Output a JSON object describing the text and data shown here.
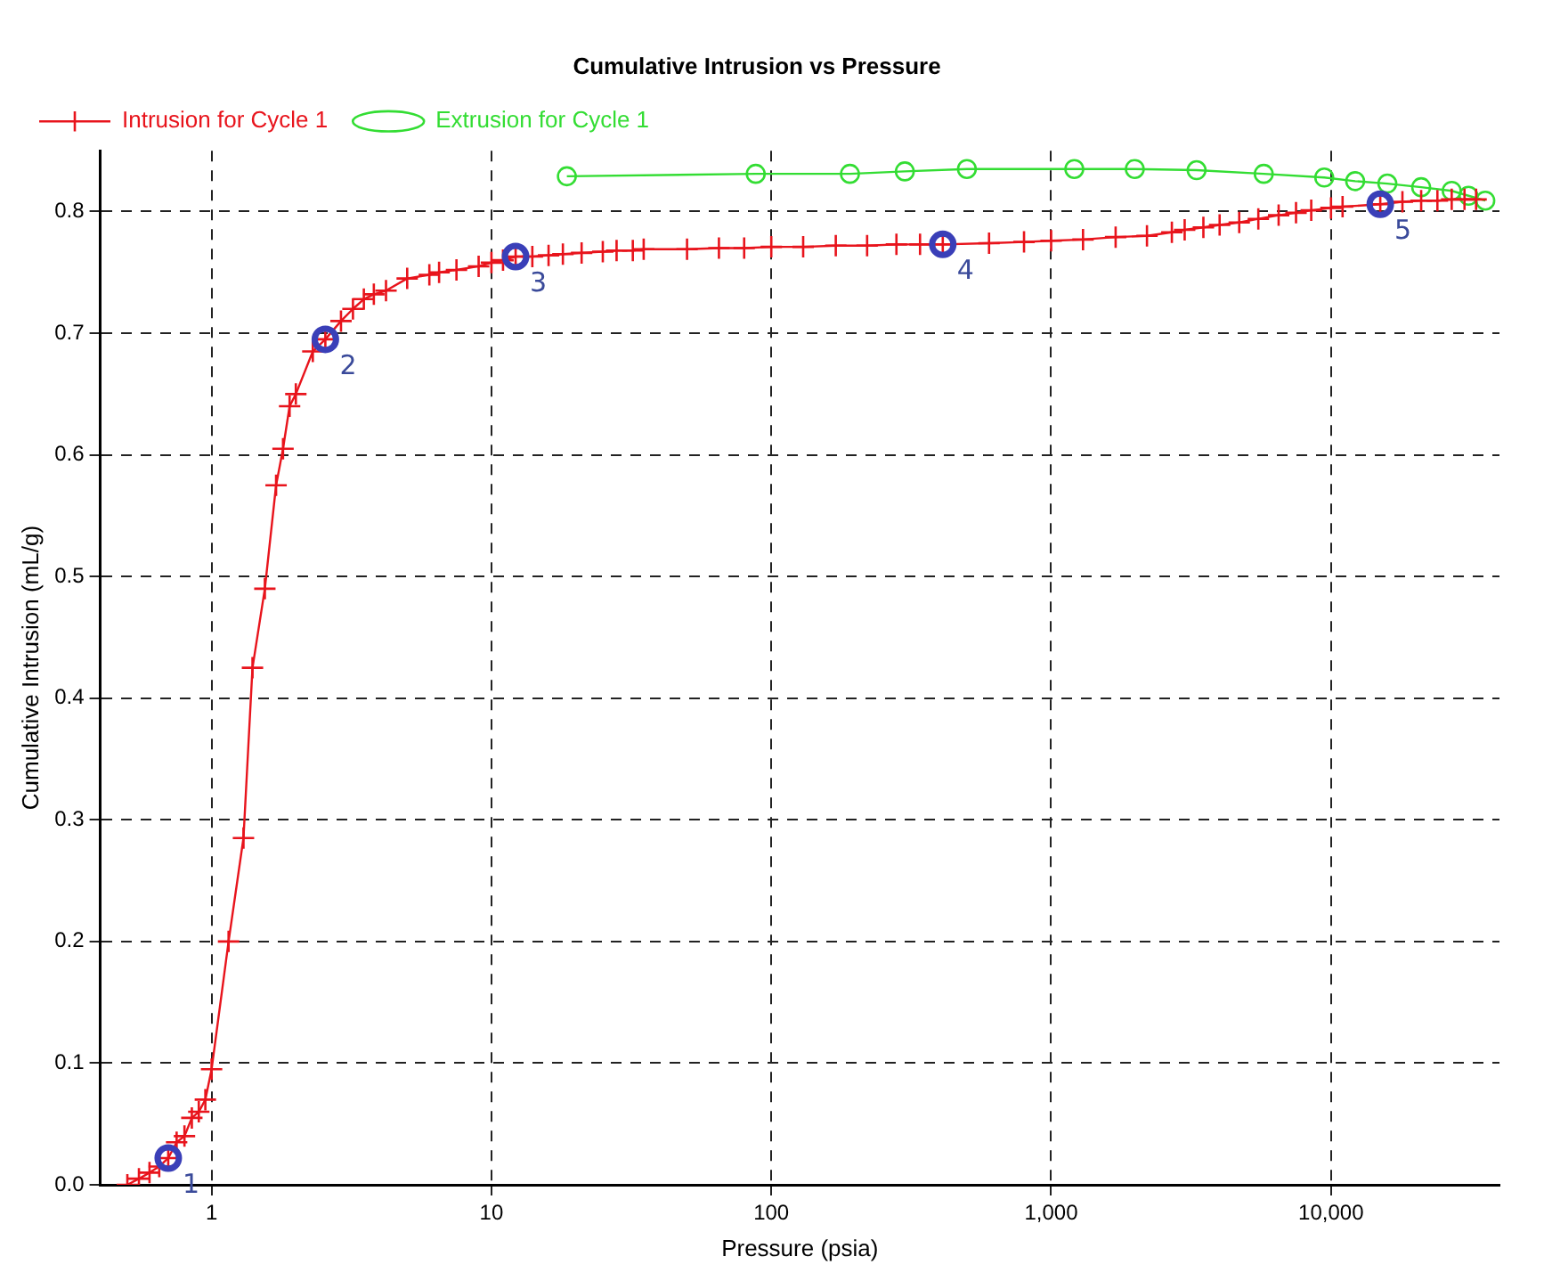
{
  "chart_data": {
    "type": "line",
    "title": "Cumulative Intrusion vs Pressure",
    "xlabel": "Pressure (psia)",
    "ylabel": "Cumulative Intrusion (mL/g)",
    "log": "x",
    "xlim": [
      0.4,
      40000
    ],
    "xticks": [
      1,
      10,
      100,
      {
        "value": 1000,
        "label": "1,000"
      },
      {
        "value": 10000,
        "label": "10,000"
      }
    ],
    "ylim": [
      0,
      0.85
    ],
    "yticks": [
      {
        "value": 0,
        "label": "0.0"
      },
      0.1,
      0.2,
      0.3,
      0.4,
      0.5,
      0.6,
      0.7,
      0.8
    ],
    "grid": true,
    "legend": "top left",
    "line_style": "solid",
    "series": [
      {
        "name": "Intrusion for Cycle 1",
        "color": "#e8141c",
        "marker": "cross",
        "x": [
          0.5,
          0.55,
          0.6,
          0.65,
          0.7,
          0.75,
          0.8,
          0.85,
          0.9,
          0.95,
          1.0,
          1.15,
          1.3,
          1.4,
          1.55,
          1.7,
          1.8,
          1.9,
          2.0,
          2.3,
          2.55,
          2.9,
          3.2,
          3.5,
          3.8,
          4.2,
          5,
          6,
          6.5,
          7.5,
          9,
          10,
          11,
          12.2,
          14,
          16,
          18,
          21,
          25,
          28,
          32,
          35,
          50,
          65,
          80,
          100,
          130,
          170,
          220,
          280,
          340,
          410,
          600,
          800,
          1000,
          1300,
          1700,
          2200,
          2700,
          3000,
          3500,
          4000,
          4700,
          5500,
          6500,
          7500,
          8500,
          10000,
          11000,
          15000,
          18000,
          21000,
          24000,
          27000,
          30000,
          33000
        ],
        "values": [
          0.0,
          0.005,
          0.01,
          0.015,
          0.022,
          0.035,
          0.04,
          0.055,
          0.06,
          0.07,
          0.095,
          0.2,
          0.285,
          0.425,
          0.49,
          0.575,
          0.605,
          0.64,
          0.65,
          0.685,
          0.695,
          0.71,
          0.72,
          0.728,
          0.732,
          0.735,
          0.745,
          0.748,
          0.75,
          0.752,
          0.755,
          0.758,
          0.76,
          0.763,
          0.763,
          0.764,
          0.765,
          0.766,
          0.767,
          0.768,
          0.768,
          0.769,
          0.769,
          0.77,
          0.77,
          0.771,
          0.771,
          0.772,
          0.772,
          0.773,
          0.773,
          0.773,
          0.774,
          0.775,
          0.776,
          0.777,
          0.779,
          0.78,
          0.783,
          0.785,
          0.787,
          0.789,
          0.791,
          0.794,
          0.797,
          0.799,
          0.801,
          0.803,
          0.804,
          0.806,
          0.808,
          0.809,
          0.809,
          0.81,
          0.81,
          0.81
        ]
      },
      {
        "name": "Extrusion for Cycle 1",
        "color": "#33dd33",
        "marker": "circle",
        "x": [
          18.6,
          88,
          191,
          300,
          500,
          1210,
          1990,
          3310,
          5750,
          9460,
          12200,
          15900,
          21000,
          27000,
          31000,
          35600
        ],
        "values": [
          0.829,
          0.831,
          0.831,
          0.833,
          0.835,
          0.835,
          0.835,
          0.834,
          0.831,
          0.828,
          0.825,
          0.823,
          0.82,
          0.817,
          0.813,
          0.809
        ]
      }
    ],
    "annotations": [
      {
        "text": "1",
        "x": 0.7,
        "y": 0.022
      },
      {
        "text": "2",
        "x": 2.55,
        "y": 0.695
      },
      {
        "text": "3",
        "x": 12.2,
        "y": 0.763
      },
      {
        "text": "4",
        "x": 410,
        "y": 0.773
      },
      {
        "text": "5",
        "x": 15000,
        "y": 0.806
      }
    ]
  }
}
